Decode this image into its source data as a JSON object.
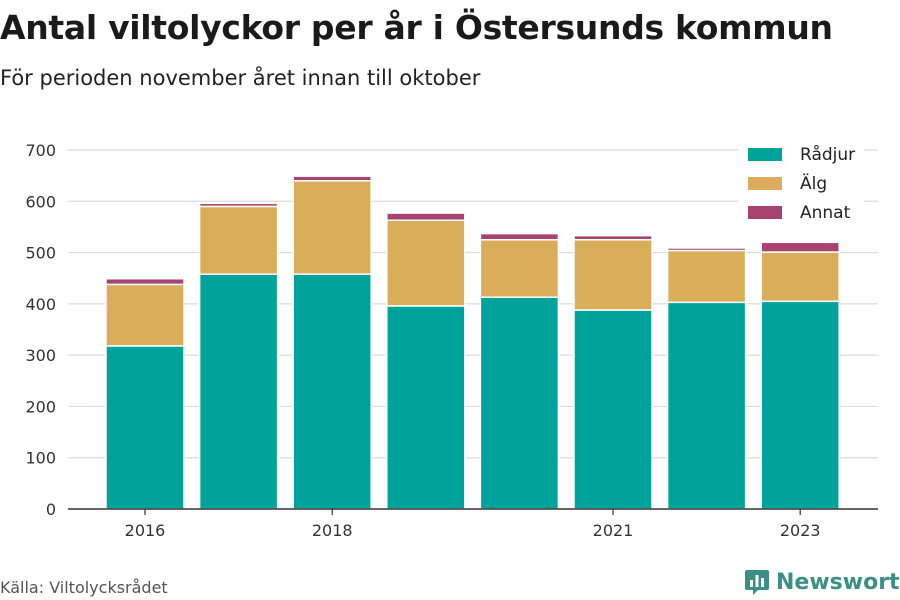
{
  "header": {
    "title": "Antal viltolyckor per år i Östersunds kommun",
    "subtitle": "För perioden november året innan till oktober"
  },
  "footer": {
    "source": "Källa: Viltolycksrådet",
    "brand": "Newsworthy",
    "brand_icon": "bar-chart-badge-icon"
  },
  "chart_data": {
    "type": "bar",
    "stacked": true,
    "categories": [
      "2016",
      "2017",
      "2018",
      "2019",
      "2020",
      "2021",
      "2022",
      "2023"
    ],
    "shown_tick_labels": [
      "2016",
      "2018",
      "2021",
      "2023"
    ],
    "series": [
      {
        "name": "Rådjur",
        "color": "#00a39a",
        "values": [
          318,
          458,
          458,
          396,
          413,
          388,
          403,
          405
        ]
      },
      {
        "name": "Älg",
        "color": "#d9ad5a",
        "values": [
          120,
          132,
          182,
          167,
          112,
          137,
          101,
          96
        ]
      },
      {
        "name": "Annat",
        "color": "#a8436f",
        "values": [
          11,
          6,
          9,
          14,
          12,
          8,
          5,
          19
        ]
      }
    ],
    "ylim": [
      0,
      700
    ],
    "yticks": [
      0,
      100,
      200,
      300,
      400,
      500,
      600,
      700
    ],
    "grid": true,
    "legend": "top-right"
  }
}
